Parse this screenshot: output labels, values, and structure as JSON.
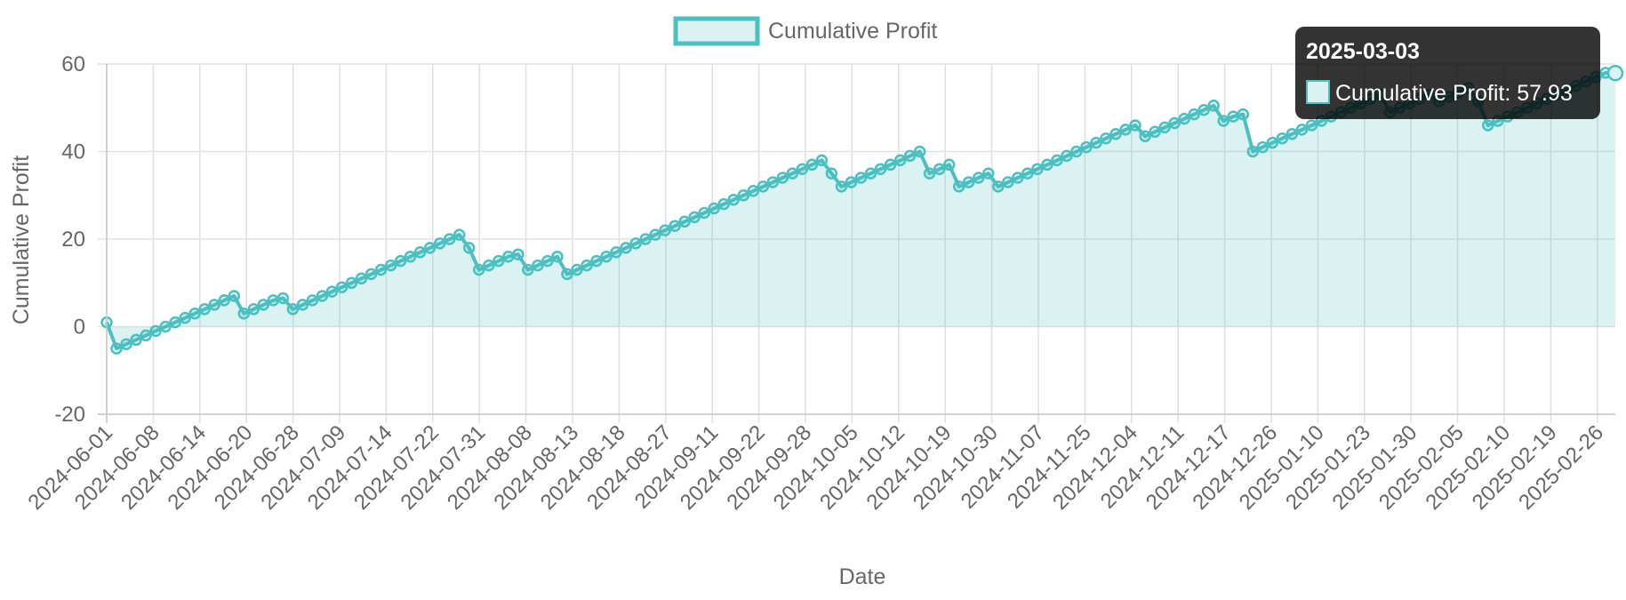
{
  "chart_data": {
    "type": "area",
    "title": "",
    "xlabel": "Date",
    "ylabel": "Cumulative Profit",
    "ylim": [
      -20,
      60
    ],
    "yticks": [
      60,
      40,
      20,
      0,
      -20
    ],
    "grid": true,
    "legend_position": "top-center",
    "x_tick_labels": [
      "2024-06-01",
      "2024-06-08",
      "2024-06-14",
      "2024-06-20",
      "2024-06-28",
      "2024-07-09",
      "2024-07-14",
      "2024-07-22",
      "2024-07-31",
      "2024-08-08",
      "2024-08-13",
      "2024-08-18",
      "2024-08-27",
      "2024-09-11",
      "2024-09-22",
      "2024-09-28",
      "2024-10-05",
      "2024-10-12",
      "2024-10-19",
      "2024-10-30",
      "2024-11-07",
      "2024-11-25",
      "2024-12-04",
      "2024-12-11",
      "2024-12-17",
      "2024-12-26",
      "2025-01-10",
      "2025-01-23",
      "2025-01-30",
      "2025-02-05",
      "2025-02-10",
      "2025-02-19",
      "2025-02-26"
    ],
    "series": [
      {
        "name": "Cumulative Profit",
        "line_color": "#4bc0c0",
        "fill_color": "rgba(75,192,192,0.2)",
        "values": [
          1.0,
          -5.0,
          -4.0,
          -3.0,
          -2.0,
          -1.0,
          0.0,
          1.0,
          2.0,
          3.0,
          4.0,
          5.0,
          6.0,
          7.0,
          3.0,
          4.0,
          5.0,
          6.0,
          6.5,
          4.0,
          5.0,
          6.0,
          7.0,
          8.0,
          9.0,
          10.0,
          11.0,
          12.0,
          13.0,
          14.0,
          15.0,
          16.0,
          17.0,
          18.0,
          19.0,
          20.0,
          21.0,
          18.0,
          13.0,
          14.0,
          15.0,
          16.0,
          16.5,
          13.0,
          14.0,
          15.0,
          16.0,
          12.0,
          13.0,
          14.0,
          15.0,
          16.0,
          17.0,
          18.0,
          19.0,
          20.0,
          21.0,
          22.0,
          23.0,
          24.0,
          25.0,
          26.0,
          27.0,
          28.0,
          29.0,
          30.0,
          31.0,
          32.0,
          33.0,
          34.0,
          35.0,
          36.0,
          37.0,
          38.0,
          35.0,
          32.0,
          33.0,
          34.0,
          35.0,
          36.0,
          37.0,
          38.0,
          39.0,
          40.0,
          35.0,
          36.0,
          37.0,
          32.0,
          33.0,
          34.0,
          35.0,
          32.0,
          33.0,
          34.0,
          35.0,
          36.0,
          37.0,
          38.0,
          39.0,
          40.0,
          41.0,
          42.0,
          43.0,
          44.0,
          45.0,
          46.0,
          43.5,
          44.5,
          45.5,
          46.5,
          47.5,
          48.5,
          49.5,
          50.5,
          47.0,
          48.0,
          48.5,
          40.0,
          41.0,
          42.0,
          43.0,
          44.0,
          45.0,
          46.0,
          47.0,
          48.0,
          49.0,
          50.0,
          51.0,
          52.0,
          53.0,
          49.0,
          50.0,
          51.0,
          52.0,
          53.0,
          51.5,
          52.5,
          53.5,
          54.5,
          51.5,
          46.0,
          47.0,
          48.0,
          49.0,
          50.0,
          51.0,
          52.0,
          53.0,
          54.0,
          55.0,
          56.0,
          57.0,
          58.0,
          57.93
        ]
      }
    ],
    "tooltip": {
      "title": "2025-03-03",
      "label": "Cumulative Profit: 57.93",
      "value": 57.93
    }
  }
}
